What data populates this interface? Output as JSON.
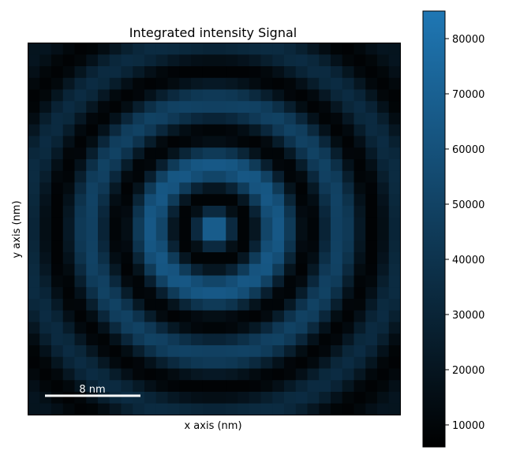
{
  "chart_data": {
    "type": "heatmap",
    "title": "Integrated intensity Signal",
    "xlabel": "x axis (nm)",
    "ylabel": "y axis (nm)",
    "grid": {
      "rows": 32,
      "cols": 32,
      "pattern": "concentric rings centered on the image",
      "center_value": 80000,
      "peak_value": 80000,
      "trough_value": 8000
    },
    "scalebar": {
      "label": "8 nm",
      "color": "#ffffff"
    },
    "colorbar": {
      "min": 6000,
      "max": 85000,
      "ticks": [
        10000,
        20000,
        30000,
        40000,
        50000,
        60000,
        70000,
        80000
      ],
      "tick_labels": [
        "10000",
        "20000",
        "30000",
        "40000",
        "50000",
        "60000",
        "70000",
        "80000"
      ],
      "colormap_low": "#000000",
      "colormap_high": "#1f77b4"
    }
  }
}
